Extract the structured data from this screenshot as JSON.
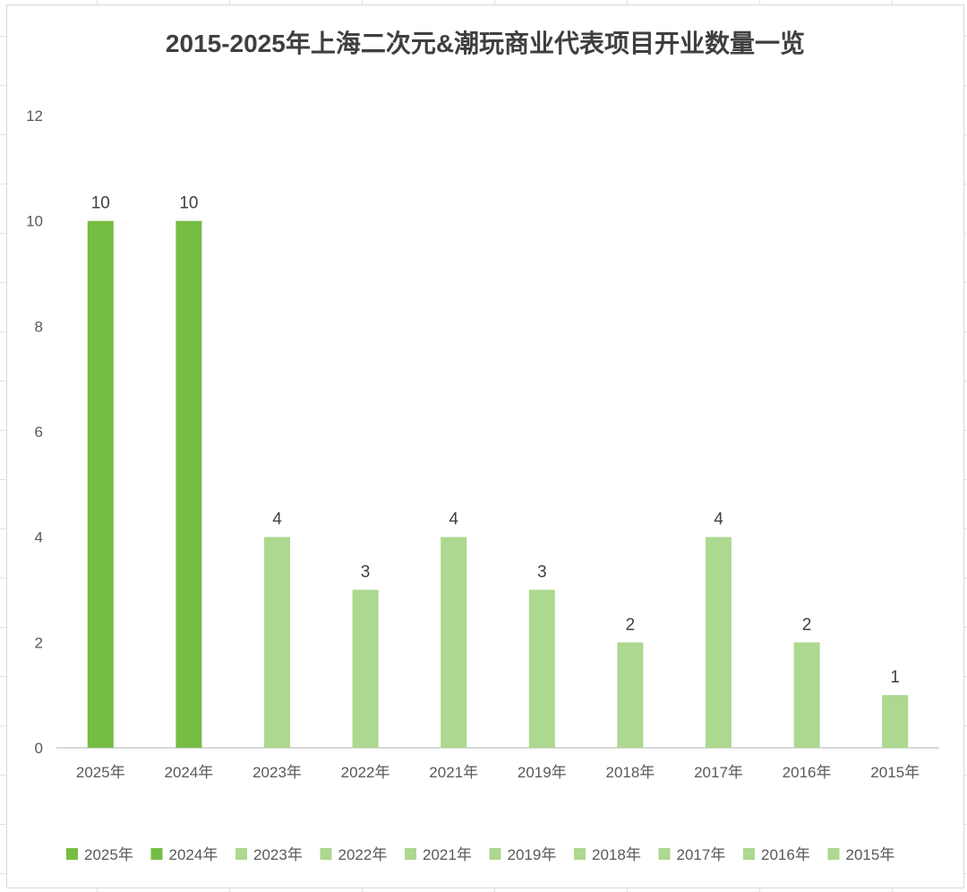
{
  "chart_data": {
    "type": "bar",
    "title": "2015-2025年上海二次元&潮玩商业代表项目开业数量一览",
    "xlabel": "",
    "ylabel": "",
    "categories": [
      "2025年",
      "2024年",
      "2023年",
      "2022年",
      "2021年",
      "2019年",
      "2018年",
      "2017年",
      "2016年",
      "2015年"
    ],
    "values": [
      10,
      10,
      4,
      3,
      4,
      3,
      2,
      4,
      2,
      1
    ],
    "colors": [
      "#76bd43",
      "#76bd43",
      "#acd88f",
      "#acd88f",
      "#acd88f",
      "#acd88f",
      "#acd88f",
      "#acd88f",
      "#acd88f",
      "#acd88f"
    ],
    "ylim": [
      0,
      12
    ],
    "yticks": [
      "0",
      "2",
      "4",
      "6",
      "8",
      "10",
      "12"
    ],
    "grid": false,
    "legend_position": "bottom",
    "data_labels": true
  }
}
